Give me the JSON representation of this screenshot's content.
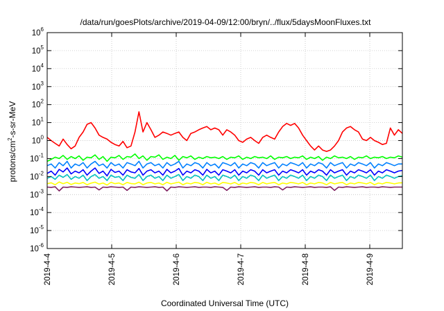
{
  "chart_data": {
    "type": "line",
    "title": "/data/run/goesPlots/archive/2019-04-09/12:00/bryn/../flux/5daysMoonFluxes.txt",
    "xlabel": "Coordinated Universal Time (UTC)",
    "ylabel": "protons/cm2-s-sr-MeV",
    "yscale": "log",
    "ylim": [
      1e-06,
      1000000.0
    ],
    "xlim": [
      "2019-04-04 00:00",
      "2019-04-09 12:00"
    ],
    "y_ticks": [
      {
        "value": 1e-06,
        "base": "10",
        "exp": "-6"
      },
      {
        "value": 1e-05,
        "base": "10",
        "exp": "-5"
      },
      {
        "value": 0.0001,
        "base": "10",
        "exp": "-4"
      },
      {
        "value": 0.001,
        "base": "10",
        "exp": "-3"
      },
      {
        "value": 0.01,
        "base": "10",
        "exp": "-2"
      },
      {
        "value": 0.1,
        "base": "10",
        "exp": "-1"
      },
      {
        "value": 1,
        "base": "10",
        "exp": "0"
      },
      {
        "value": 10,
        "base": "10",
        "exp": "1"
      },
      {
        "value": 100,
        "base": "10",
        "exp": "2"
      },
      {
        "value": 1000,
        "base": "10",
        "exp": "3"
      },
      {
        "value": 10000,
        "base": "10",
        "exp": "4"
      },
      {
        "value": 100000,
        "base": "10",
        "exp": "5"
      },
      {
        "value": 1000000,
        "base": "10",
        "exp": "6"
      }
    ],
    "x_ticks": [
      "2019-4-4",
      "2019-4-5",
      "2019-4-6",
      "2019-4-7",
      "2019-4-8",
      "2019-4-9"
    ],
    "grid": true,
    "series": [
      {
        "color": "#ff0000",
        "values": [
          1.5,
          1.0,
          0.7,
          0.5,
          1.2,
          0.6,
          0.35,
          0.5,
          1.5,
          3,
          8,
          10,
          5,
          2,
          1.5,
          1.2,
          0.8,
          0.6,
          0.5,
          0.9,
          0.4,
          0.5,
          3,
          40,
          3,
          10,
          4,
          1.5,
          2,
          3,
          2.5,
          2,
          2.5,
          3,
          1.5,
          1,
          2.5,
          3,
          4,
          5,
          6,
          4,
          5,
          4,
          2,
          4,
          3,
          2,
          1,
          0.8,
          1.2,
          1.5,
          1,
          0.7,
          1.5,
          2,
          1.5,
          1.2,
          3,
          6,
          9,
          7,
          9,
          5,
          2,
          1,
          0.5,
          0.3,
          0.5,
          0.3,
          0.25,
          0.3,
          0.5,
          1,
          3,
          5,
          6,
          4,
          3,
          1.2,
          1,
          1.5,
          1,
          0.8,
          0.6,
          0.7,
          5,
          2,
          4,
          2.5
        ]
      },
      {
        "color": "#00ff00",
        "values": [
          0.07,
          0.09,
          0.12,
          0.1,
          0.15,
          0.09,
          0.13,
          0.1,
          0.14,
          0.08,
          0.12,
          0.11,
          0.16,
          0.09,
          0.13,
          0.07,
          0.12,
          0.11,
          0.15,
          0.09,
          0.13,
          0.12,
          0.18,
          0.1,
          0.14,
          0.08,
          0.13,
          0.12,
          0.16,
          0.09,
          0.12,
          0.1,
          0.15,
          0.08,
          0.13,
          0.11,
          0.14,
          0.09,
          0.12,
          0.1,
          0.13,
          0.11,
          0.12,
          0.1,
          0.13,
          0.09,
          0.12,
          0.11,
          0.14,
          0.09,
          0.12,
          0.1,
          0.13,
          0.11,
          0.12,
          0.1,
          0.14,
          0.09,
          0.12,
          0.11,
          0.13,
          0.1,
          0.12,
          0.11,
          0.14,
          0.09,
          0.12,
          0.1,
          0.13,
          0.08,
          0.12,
          0.1,
          0.14,
          0.11,
          0.12,
          0.1,
          0.13,
          0.09,
          0.12,
          0.11,
          0.14,
          0.1,
          0.12,
          0.11,
          0.13,
          0.1,
          0.12,
          0.11,
          0.14,
          0.12
        ]
      },
      {
        "color": "#0080ff",
        "values": [
          0.04,
          0.05,
          0.03,
          0.06,
          0.04,
          0.07,
          0.03,
          0.05,
          0.04,
          0.06,
          0.03,
          0.05,
          0.07,
          0.04,
          0.05,
          0.03,
          0.06,
          0.04,
          0.05,
          0.03,
          0.06,
          0.05,
          0.04,
          0.07,
          0.03,
          0.05,
          0.06,
          0.04,
          0.05,
          0.03,
          0.06,
          0.04,
          0.05,
          0.07,
          0.03,
          0.05,
          0.04,
          0.06,
          0.05,
          0.03,
          0.06,
          0.04,
          0.05,
          0.03,
          0.06,
          0.05,
          0.04,
          0.06,
          0.03,
          0.05,
          0.04,
          0.06,
          0.05,
          0.03,
          0.06,
          0.04,
          0.05,
          0.06,
          0.03,
          0.05,
          0.04,
          0.06,
          0.05,
          0.04,
          0.06,
          0.03,
          0.05,
          0.04,
          0.06,
          0.05,
          0.03,
          0.06,
          0.04,
          0.05,
          0.06,
          0.03,
          0.05,
          0.04,
          0.06,
          0.05,
          0.04,
          0.06,
          0.03,
          0.05,
          0.04,
          0.06,
          0.05,
          0.04,
          0.05,
          0.05
        ]
      },
      {
        "color": "#0000ff",
        "values": [
          0.015,
          0.02,
          0.012,
          0.025,
          0.018,
          0.03,
          0.014,
          0.02,
          0.016,
          0.024,
          0.012,
          0.02,
          0.03,
          0.015,
          0.02,
          0.011,
          0.025,
          0.017,
          0.02,
          0.012,
          0.024,
          0.018,
          0.016,
          0.028,
          0.012,
          0.02,
          0.024,
          0.016,
          0.02,
          0.012,
          0.025,
          0.016,
          0.02,
          0.028,
          0.012,
          0.02,
          0.016,
          0.024,
          0.02,
          0.012,
          0.025,
          0.016,
          0.02,
          0.012,
          0.024,
          0.02,
          0.016,
          0.024,
          0.012,
          0.02,
          0.016,
          0.024,
          0.02,
          0.012,
          0.024,
          0.016,
          0.02,
          0.024,
          0.012,
          0.02,
          0.016,
          0.024,
          0.02,
          0.016,
          0.024,
          0.012,
          0.02,
          0.016,
          0.024,
          0.02,
          0.012,
          0.024,
          0.016,
          0.02,
          0.024,
          0.012,
          0.02,
          0.016,
          0.024,
          0.02,
          0.016,
          0.024,
          0.012,
          0.02,
          0.016,
          0.024,
          0.02,
          0.016,
          0.02,
          0.022
        ]
      },
      {
        "color": "#00c0c0",
        "values": [
          0.008,
          0.01,
          0.007,
          0.012,
          0.009,
          0.013,
          0.007,
          0.01,
          0.008,
          0.012,
          0.006,
          0.01,
          0.013,
          0.008,
          0.01,
          0.006,
          0.012,
          0.009,
          0.01,
          0.006,
          0.012,
          0.009,
          0.008,
          0.013,
          0.006,
          0.01,
          0.012,
          0.008,
          0.01,
          0.006,
          0.012,
          0.008,
          0.01,
          0.013,
          0.006,
          0.01,
          0.008,
          0.012,
          0.01,
          0.006,
          0.012,
          0.008,
          0.01,
          0.006,
          0.012,
          0.01,
          0.008,
          0.012,
          0.006,
          0.01,
          0.008,
          0.012,
          0.01,
          0.006,
          0.012,
          0.008,
          0.01,
          0.012,
          0.006,
          0.01,
          0.008,
          0.012,
          0.01,
          0.008,
          0.012,
          0.006,
          0.01,
          0.008,
          0.012,
          0.01,
          0.006,
          0.012,
          0.008,
          0.01,
          0.012,
          0.006,
          0.01,
          0.008,
          0.012,
          0.01,
          0.008,
          0.012,
          0.006,
          0.01,
          0.008,
          0.012,
          0.01,
          0.008,
          0.01,
          0.011
        ]
      },
      {
        "color": "#ffff00",
        "values": [
          0.004,
          0.0045,
          0.0035,
          0.005,
          0.004,
          0.0048,
          0.0036,
          0.0044,
          0.004,
          0.0047,
          0.0035,
          0.0043,
          0.0049,
          0.0038,
          0.0044,
          0.0034,
          0.0048,
          0.004,
          0.0044,
          0.0035,
          0.0047,
          0.0041,
          0.0039,
          0.0049,
          0.0035,
          0.0044,
          0.0047,
          0.0039,
          0.0044,
          0.0035,
          0.0048,
          0.0039,
          0.0044,
          0.0049,
          0.0035,
          0.0044,
          0.0039,
          0.0047,
          0.0044,
          0.0035,
          0.0048,
          0.0039,
          0.0044,
          0.0035,
          0.0047,
          0.0044,
          0.0039,
          0.0047,
          0.0035,
          0.0044,
          0.0039,
          0.0047,
          0.0044,
          0.0035,
          0.0047,
          0.0039,
          0.0044,
          0.0047,
          0.0035,
          0.0044,
          0.0039,
          0.0047,
          0.0044,
          0.0039,
          0.0047,
          0.0035,
          0.0044,
          0.0039,
          0.0047,
          0.0044,
          0.0035,
          0.0047,
          0.0039,
          0.0044,
          0.0047,
          0.0035,
          0.0044,
          0.0039,
          0.0047,
          0.0044,
          0.0039,
          0.0047,
          0.0035,
          0.0044,
          0.0039,
          0.0047,
          0.0044,
          0.0039,
          0.0044,
          0.0045
        ]
      },
      {
        "color": "#802060",
        "values": [
          0.0026,
          0.0025,
          0.0027,
          0.0016,
          0.0026,
          0.0025,
          0.0027,
          0.0026,
          0.0025,
          0.0026,
          0.0027,
          0.0025,
          0.0026,
          0.0018,
          0.0026,
          0.0025,
          0.0027,
          0.0026,
          0.0025,
          0.0026,
          0.0017,
          0.0026,
          0.0025,
          0.0027,
          0.0026,
          0.0025,
          0.0026,
          0.0027,
          0.0025,
          0.0026,
          0.0016,
          0.0026,
          0.0025,
          0.0027,
          0.0026,
          0.0025,
          0.0026,
          0.0027,
          0.0025,
          0.0026,
          0.0026,
          0.0025,
          0.0027,
          0.0026,
          0.0025,
          0.0017,
          0.0026,
          0.0025,
          0.0027,
          0.0026,
          0.0025,
          0.0026,
          0.0027,
          0.0025,
          0.0026,
          0.0026,
          0.0025,
          0.0027,
          0.0026,
          0.0018,
          0.0026,
          0.0025,
          0.0027,
          0.0026,
          0.0025,
          0.0026,
          0.0027,
          0.0025,
          0.0026,
          0.0026,
          0.0025,
          0.0027,
          0.0017,
          0.0026,
          0.0025,
          0.0027,
          0.0026,
          0.0025,
          0.0026,
          0.0027,
          0.0025,
          0.0026,
          0.0026,
          0.0025,
          0.0027,
          0.0026,
          0.0025,
          0.0026,
          0.0026,
          0.0026
        ]
      }
    ]
  }
}
